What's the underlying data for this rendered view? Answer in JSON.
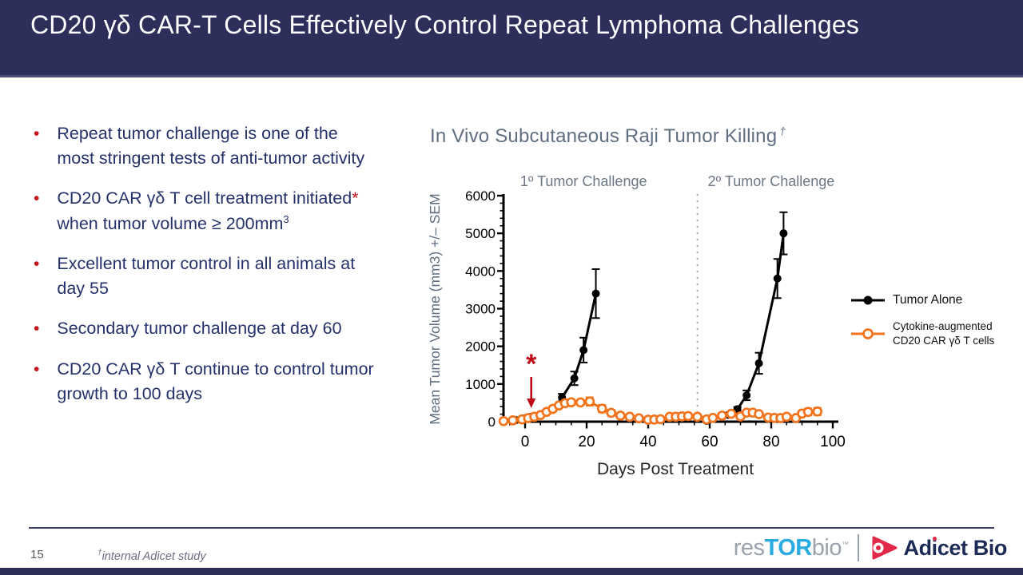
{
  "slide": {
    "title": "CD20 γδ CAR-T Cells Effectively Control Repeat Lymphoma Challenges"
  },
  "bullets": [
    {
      "segments": [
        {
          "t": "Repeat tumor challenge is one of the most stringent tests of anti-tumor activity"
        }
      ]
    },
    {
      "segments": [
        {
          "t": "CD20 CAR γδ T cell treatment initiated"
        },
        {
          "t": "*",
          "red": true
        },
        {
          "t": " when tumor volume ≥ 200mm"
        },
        {
          "t": "3",
          "sup": true
        }
      ]
    },
    {
      "segments": [
        {
          "t": "Excellent tumor control in all animals at day 55"
        }
      ]
    },
    {
      "segments": [
        {
          "t": "Secondary tumor challenge at day 60"
        }
      ]
    },
    {
      "segments": [
        {
          "t": "CD20 CAR γδ T continue to control tumor growth to 100 days"
        }
      ]
    }
  ],
  "chart_data": {
    "type": "line",
    "title": "In Vivo Subcutaneous Raji Tumor Killing",
    "title_dagger": "†",
    "xlabel": "Days Post Treatment",
    "ylabel": "Mean Tumor Volume (mm3) +/– SEM",
    "xlim": [
      -7,
      101
    ],
    "ylim": [
      0,
      6000
    ],
    "x_ticks": [
      0,
      20,
      40,
      60,
      80,
      100
    ],
    "x_minor_step": 5,
    "y_ticks": [
      0,
      1000,
      2000,
      3000,
      4000,
      5000,
      6000
    ],
    "y_minor_step": 200,
    "grid": false,
    "legend_position": "right",
    "annotations": [
      {
        "text": "1º Tumor Challenge",
        "day": 19
      },
      {
        "text": "2º Tumor Challenge",
        "day": 80
      }
    ],
    "challenge2_dotted_line_day": 56,
    "treatment_start_marker": {
      "symbol": "*",
      "day": 2,
      "color": "#c00a18"
    },
    "series": [
      {
        "name": "Tumor Alone",
        "legend_lines": [
          "Tumor Alone"
        ],
        "color": "#000000",
        "marker": "filled-circle",
        "segments": [
          [
            [
              -7,
              15,
              0
            ],
            [
              -3,
              40,
              0
            ],
            [
              0,
              90,
              0
            ],
            [
              2,
              130,
              0
            ],
            [
              5,
              190,
              0
            ],
            [
              7,
              250,
              0
            ],
            [
              9,
              330,
              40
            ],
            [
              12,
              640,
              100
            ],
            [
              16,
              1150,
              180
            ],
            [
              19,
              1900,
              330
            ],
            [
              23,
              3400,
              650
            ]
          ],
          [
            [
              59,
              20,
              0
            ],
            [
              66,
              180,
              40
            ],
            [
              69,
              330,
              60
            ],
            [
              72,
              700,
              130
            ],
            [
              76,
              1550,
              280
            ],
            [
              82,
              3800,
              520
            ],
            [
              84,
              5000,
              560
            ]
          ]
        ]
      },
      {
        "name": "Cytokine-augmented CD20 CAR γδ T cells",
        "legend_lines": [
          "Cytokine-augmented",
          "CD20 CAR γδ T cells"
        ],
        "color": "#f3731c",
        "marker": "open-circle",
        "segments": [
          [
            [
              -7,
              15,
              0
            ],
            [
              -4,
              35,
              0
            ],
            [
              -1,
              60,
              0
            ],
            [
              1,
              95,
              0
            ],
            [
              3,
              130,
              0
            ],
            [
              5,
              175,
              0
            ],
            [
              7,
              260,
              0
            ],
            [
              9,
              340,
              0
            ],
            [
              11,
              430,
              0
            ],
            [
              13,
              490,
              60
            ],
            [
              15,
              515,
              70
            ],
            [
              18,
              510,
              60
            ],
            [
              21,
              535,
              110
            ],
            [
              25,
              345,
              100
            ],
            [
              28,
              235,
              80
            ],
            [
              31,
              160,
              0
            ],
            [
              34,
              130,
              0
            ],
            [
              37,
              90,
              0
            ],
            [
              40,
              50,
              0
            ],
            [
              42,
              55,
              0
            ],
            [
              44,
              65,
              0
            ],
            [
              47,
              130,
              0
            ],
            [
              49,
              130,
              0
            ],
            [
              51,
              140,
              0
            ],
            [
              53,
              150,
              60
            ],
            [
              56,
              130,
              50
            ],
            [
              59,
              60,
              0
            ],
            [
              61,
              100,
              0
            ],
            [
              64,
              160,
              50
            ],
            [
              67,
              210,
              60
            ],
            [
              70,
              140,
              0
            ],
            [
              72,
              240,
              0
            ],
            [
              74,
              240,
              0
            ],
            [
              76,
              200,
              0
            ],
            [
              79,
              110,
              0
            ],
            [
              81,
              100,
              0
            ],
            [
              83,
              95,
              0
            ],
            [
              85,
              130,
              0
            ],
            [
              88,
              95,
              0
            ],
            [
              90,
              215,
              80
            ],
            [
              92,
              260,
              90
            ],
            [
              95,
              270,
              100
            ]
          ]
        ]
      }
    ]
  },
  "footer": {
    "page_number": "15",
    "footnote_symbol": "†",
    "footnote_text": "internal Adicet study",
    "logos": {
      "restorbio": {
        "res": "res",
        "tor": "TOR",
        "bio": "bio",
        "tm": "™"
      },
      "adicet": {
        "pre": "Ad",
        "i": "i",
        "post": "cet Bio"
      }
    }
  },
  "colors": {
    "header_navy": "#2d2f5a",
    "bullet_text_navy": "#25316b",
    "bullet_red": "#c4161c",
    "chart_title_gray": "#5f6e80",
    "orange_series": "#f3731c",
    "black_series": "#000000",
    "restorbio_blue": "#29abe2",
    "restorbio_gray": "#9ba2ab",
    "adicet_navy": "#1c2a56",
    "adicet_red": "#e2294a"
  }
}
